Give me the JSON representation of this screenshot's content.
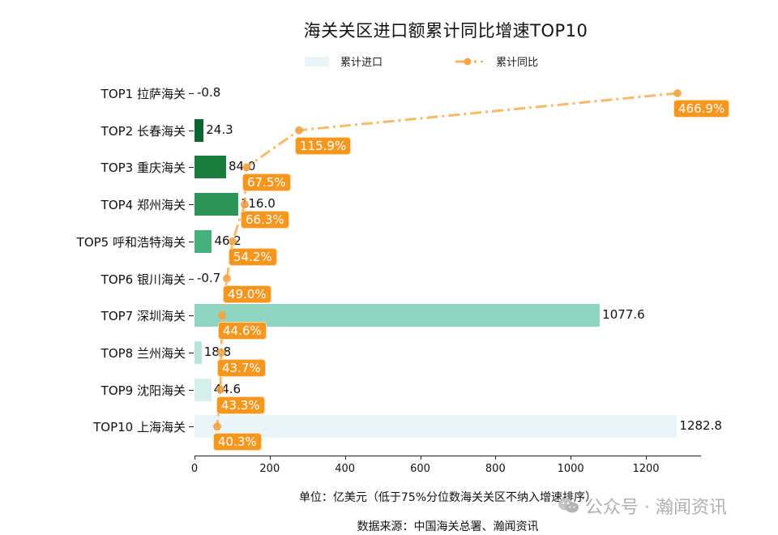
{
  "chart": {
    "title": "海关关区进口额累计同比增速TOP10",
    "legend": [
      {
        "label": "累计进口",
        "type": "bar",
        "color": "#e8f5f9"
      },
      {
        "label": "累计同比",
        "type": "line",
        "color": "#f7b15c"
      }
    ],
    "xlabel": "单位：亿美元（低于75%分位数海关关区不纳入增速排序）",
    "source": "数据来源：中国海关总署、瀚闻资讯",
    "watermark": "公众号 · 瀚闻资讯",
    "x_ticks": [
      "0",
      "200",
      "400",
      "600",
      "800",
      "1000",
      "1200"
    ]
  },
  "chart_data": {
    "type": "bar",
    "title": "海关关区进口额累计同比增速TOP10",
    "xlabel": "单位：亿美元（低于75%分位数海关关区不纳入增速排序）",
    "ylabel": "",
    "xlim": [
      0,
      1350
    ],
    "grid": false,
    "legend_position": "top",
    "categories": [
      "TOP1 拉萨海关",
      "TOP2 长春海关",
      "TOP3 重庆海关",
      "TOP4 郑州海关",
      "TOP5 呼和浩特海关",
      "TOP6 银川海关",
      "TOP7 深圳海关",
      "TOP8 兰州海关",
      "TOP9 沈阳海关",
      "TOP10 上海海关"
    ],
    "series": [
      {
        "name": "累计进口",
        "type": "bar",
        "unit": "亿美元",
        "values": [
          -0.8,
          24.3,
          84.0,
          116.0,
          46.2,
          -0.7,
          1077.6,
          18.8,
          44.6,
          1282.8
        ],
        "labels": [
          "-0.8",
          "24.3",
          "84.0",
          "116.0",
          "46.2",
          "-0.7",
          "1077.6",
          "18.8",
          "44.6",
          "1282.8"
        ],
        "colors": [
          "#0a6630",
          "#0a6630",
          "#1b7d3d",
          "#2e9558",
          "#46b07b",
          "#8fd3c1",
          "#8fd3c1",
          "#b8e4dc",
          "#d6efec",
          "#e8f5f9"
        ]
      },
      {
        "name": "累计同比",
        "type": "line",
        "unit": "%",
        "values": [
          466.9,
          115.9,
          67.5,
          66.3,
          54.2,
          49.0,
          44.6,
          43.7,
          43.3,
          40.3
        ],
        "labels": [
          "466.9%",
          "115.9%",
          "67.5%",
          "66.3%",
          "54.2%",
          "49.0%",
          "44.6%",
          "43.7%",
          "43.3%",
          "40.3%"
        ]
      }
    ]
  }
}
